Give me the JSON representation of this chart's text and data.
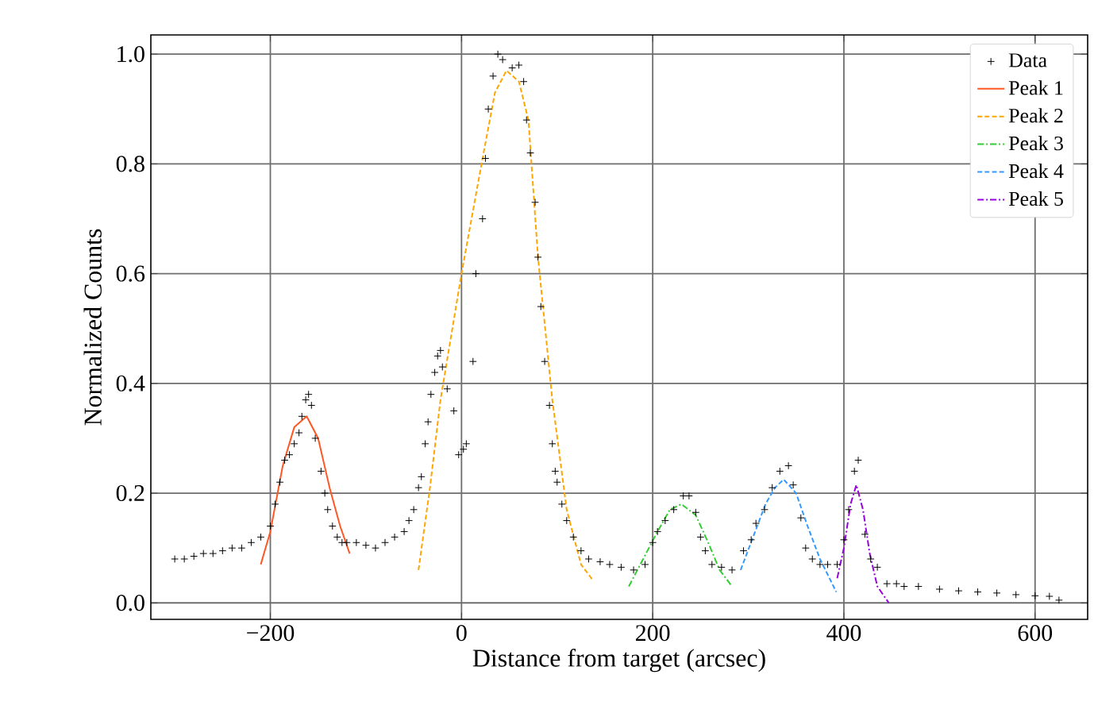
{
  "chart_data": {
    "type": "line",
    "xlabel": "Distance from target (arcsec)",
    "ylabel": "Normalized Counts",
    "xlim": [
      -325,
      655
    ],
    "ylim": [
      -0.03,
      1.035
    ],
    "xticks": [
      {
        "value": -200,
        "label": "−200"
      },
      {
        "value": 0,
        "label": "0"
      },
      {
        "value": 200,
        "label": "200"
      },
      {
        "value": 400,
        "label": "400"
      },
      {
        "value": 600,
        "label": "600"
      }
    ],
    "yticks": [
      {
        "value": 0,
        "label": "0.0"
      },
      {
        "value": 0.2,
        "label": "0.2"
      },
      {
        "value": 0.4,
        "label": "0.4"
      },
      {
        "value": 0.6,
        "label": "0.6"
      },
      {
        "value": 0.8,
        "label": "0.8"
      },
      {
        "value": 1.0,
        "label": "1.0"
      }
    ],
    "grid": true,
    "legend": "top right",
    "series": [
      {
        "name": "Data",
        "type": "scatter",
        "marker": "cross",
        "color": "#000000",
        "x": [
          -300,
          -290,
          -280,
          -270,
          -260,
          -250,
          -240,
          -230,
          -220,
          -210,
          -200,
          -195,
          -190,
          -185,
          -180,
          -175,
          -170,
          -167,
          -163,
          -160,
          -157,
          -153,
          -147,
          -143,
          -140,
          -135,
          -130,
          -125,
          -120,
          -110,
          -100,
          -90,
          -80,
          -70,
          -60,
          -55,
          -50,
          -45,
          -42,
          -38,
          -35,
          -32,
          -28,
          -25,
          -22,
          -20,
          -15,
          -8,
          -3,
          2,
          5,
          12,
          15,
          22,
          25,
          28,
          33,
          38,
          43,
          53,
          60,
          65,
          68,
          72,
          77,
          80,
          83,
          87,
          92,
          95,
          98,
          100,
          105,
          110,
          117,
          125,
          133,
          145,
          155,
          167,
          180,
          192,
          200,
          205,
          213,
          222,
          232,
          238,
          245,
          250,
          255,
          262,
          272,
          283,
          295,
          303,
          308,
          317,
          325,
          333,
          342,
          347,
          355,
          360,
          367,
          375,
          383,
          393,
          400,
          405,
          411,
          415,
          422,
          428,
          435,
          445,
          455,
          463,
          478,
          500,
          520,
          540,
          560,
          580,
          600,
          615,
          625
        ],
        "values": [
          0.08,
          0.08,
          0.085,
          0.09,
          0.09,
          0.095,
          0.1,
          0.1,
          0.11,
          0.12,
          0.14,
          0.18,
          0.22,
          0.26,
          0.27,
          0.29,
          0.31,
          0.34,
          0.37,
          0.38,
          0.36,
          0.3,
          0.24,
          0.2,
          0.17,
          0.14,
          0.12,
          0.11,
          0.11,
          0.11,
          0.105,
          0.1,
          0.11,
          0.12,
          0.13,
          0.15,
          0.17,
          0.21,
          0.23,
          0.29,
          0.33,
          0.38,
          0.42,
          0.45,
          0.46,
          0.43,
          0.39,
          0.35,
          0.27,
          0.28,
          0.29,
          0.44,
          0.6,
          0.7,
          0.81,
          0.9,
          0.96,
          1.0,
          0.99,
          0.975,
          0.98,
          0.95,
          0.88,
          0.82,
          0.73,
          0.63,
          0.54,
          0.44,
          0.36,
          0.29,
          0.24,
          0.22,
          0.18,
          0.15,
          0.12,
          0.095,
          0.08,
          0.075,
          0.07,
          0.065,
          0.06,
          0.07,
          0.11,
          0.13,
          0.15,
          0.17,
          0.195,
          0.195,
          0.165,
          0.12,
          0.095,
          0.07,
          0.065,
          0.06,
          0.095,
          0.115,
          0.145,
          0.17,
          0.21,
          0.24,
          0.25,
          0.215,
          0.155,
          0.1,
          0.08,
          0.07,
          0.07,
          0.07,
          0.115,
          0.17,
          0.24,
          0.26,
          0.125,
          0.08,
          0.065,
          0.035,
          0.035,
          0.03,
          0.03,
          0.025,
          0.022,
          0.02,
          0.018,
          0.015,
          0.013,
          0.012,
          0.005
        ]
      },
      {
        "name": "Peak 1",
        "line_style": "solid",
        "color": "#ff5722",
        "x": [
          -210,
          -200,
          -187,
          -175,
          -162,
          -150,
          -138,
          -127,
          -117
        ],
        "values": [
          0.07,
          0.13,
          0.25,
          0.32,
          0.34,
          0.3,
          0.21,
          0.14,
          0.09
        ]
      },
      {
        "name": "Peak 2",
        "line_style": "dashed",
        "color": "#ffa500",
        "x": [
          -45,
          -33,
          -22,
          0,
          22,
          35,
          47,
          60,
          70,
          80,
          95,
          110,
          125,
          138
        ],
        "values": [
          0.06,
          0.21,
          0.37,
          0.6,
          0.81,
          0.93,
          0.97,
          0.95,
          0.88,
          0.63,
          0.37,
          0.17,
          0.07,
          0.04
        ]
      },
      {
        "name": "Peak 3",
        "line_style": "dashdot",
        "color": "#33cc33",
        "x": [
          175,
          190,
          205,
          218,
          230,
          245,
          258,
          270,
          283
        ],
        "values": [
          0.03,
          0.08,
          0.13,
          0.17,
          0.18,
          0.16,
          0.11,
          0.06,
          0.03
        ]
      },
      {
        "name": "Peak 4",
        "line_style": "dashed",
        "color": "#3399ff",
        "x": [
          292,
          305,
          318,
          328,
          337,
          350,
          362,
          375,
          392
        ],
        "values": [
          0.06,
          0.12,
          0.18,
          0.21,
          0.225,
          0.2,
          0.14,
          0.08,
          0.02
        ]
      },
      {
        "name": "Peak 5",
        "line_style": "dashdot",
        "color": "#9900dd",
        "x": [
          393,
          400,
          407,
          413,
          420,
          427,
          435,
          447
        ],
        "values": [
          0.045,
          0.1,
          0.18,
          0.215,
          0.17,
          0.09,
          0.03,
          0.0
        ]
      }
    ]
  }
}
